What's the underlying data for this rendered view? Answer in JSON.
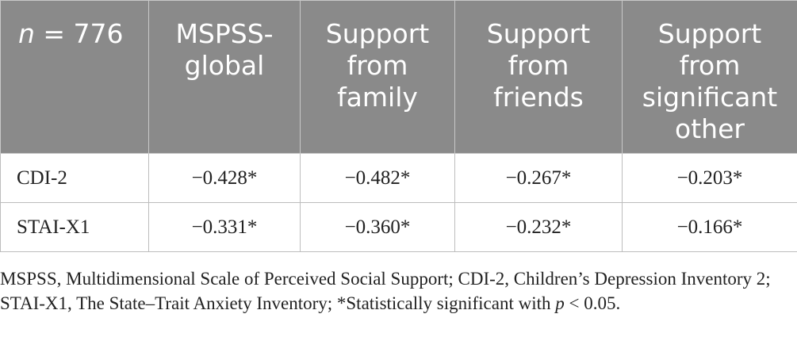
{
  "table": {
    "header": {
      "n_label_italic": "n",
      "n_label_rest": " = 776",
      "columns": [
        "MSPSS-global",
        "Support from family",
        "Support from friends",
        "Support from significant other"
      ]
    },
    "rows": [
      {
        "label": "CDI-2",
        "values": [
          "−0.428*",
          "−0.482*",
          "−0.267*",
          "−0.203*"
        ]
      },
      {
        "label": "STAI-X1",
        "values": [
          "−0.331*",
          "−0.360*",
          "−0.232*",
          "−0.166*"
        ]
      }
    ]
  },
  "footnote": {
    "text_before": "MSPSS, Multidimensional Scale of Perceived Social Support; CDI-2, Children’s Depression Inventory 2; STAI-X1, The State–Trait Anxiety Inventory; *Statistically significant with ",
    "p_italic": "p",
    "text_after": " < 0.05."
  },
  "colors": {
    "header_bg": "#8a8a8a",
    "header_text": "#ffffff",
    "border": "#bdbdbd",
    "body_text": "#222222"
  }
}
